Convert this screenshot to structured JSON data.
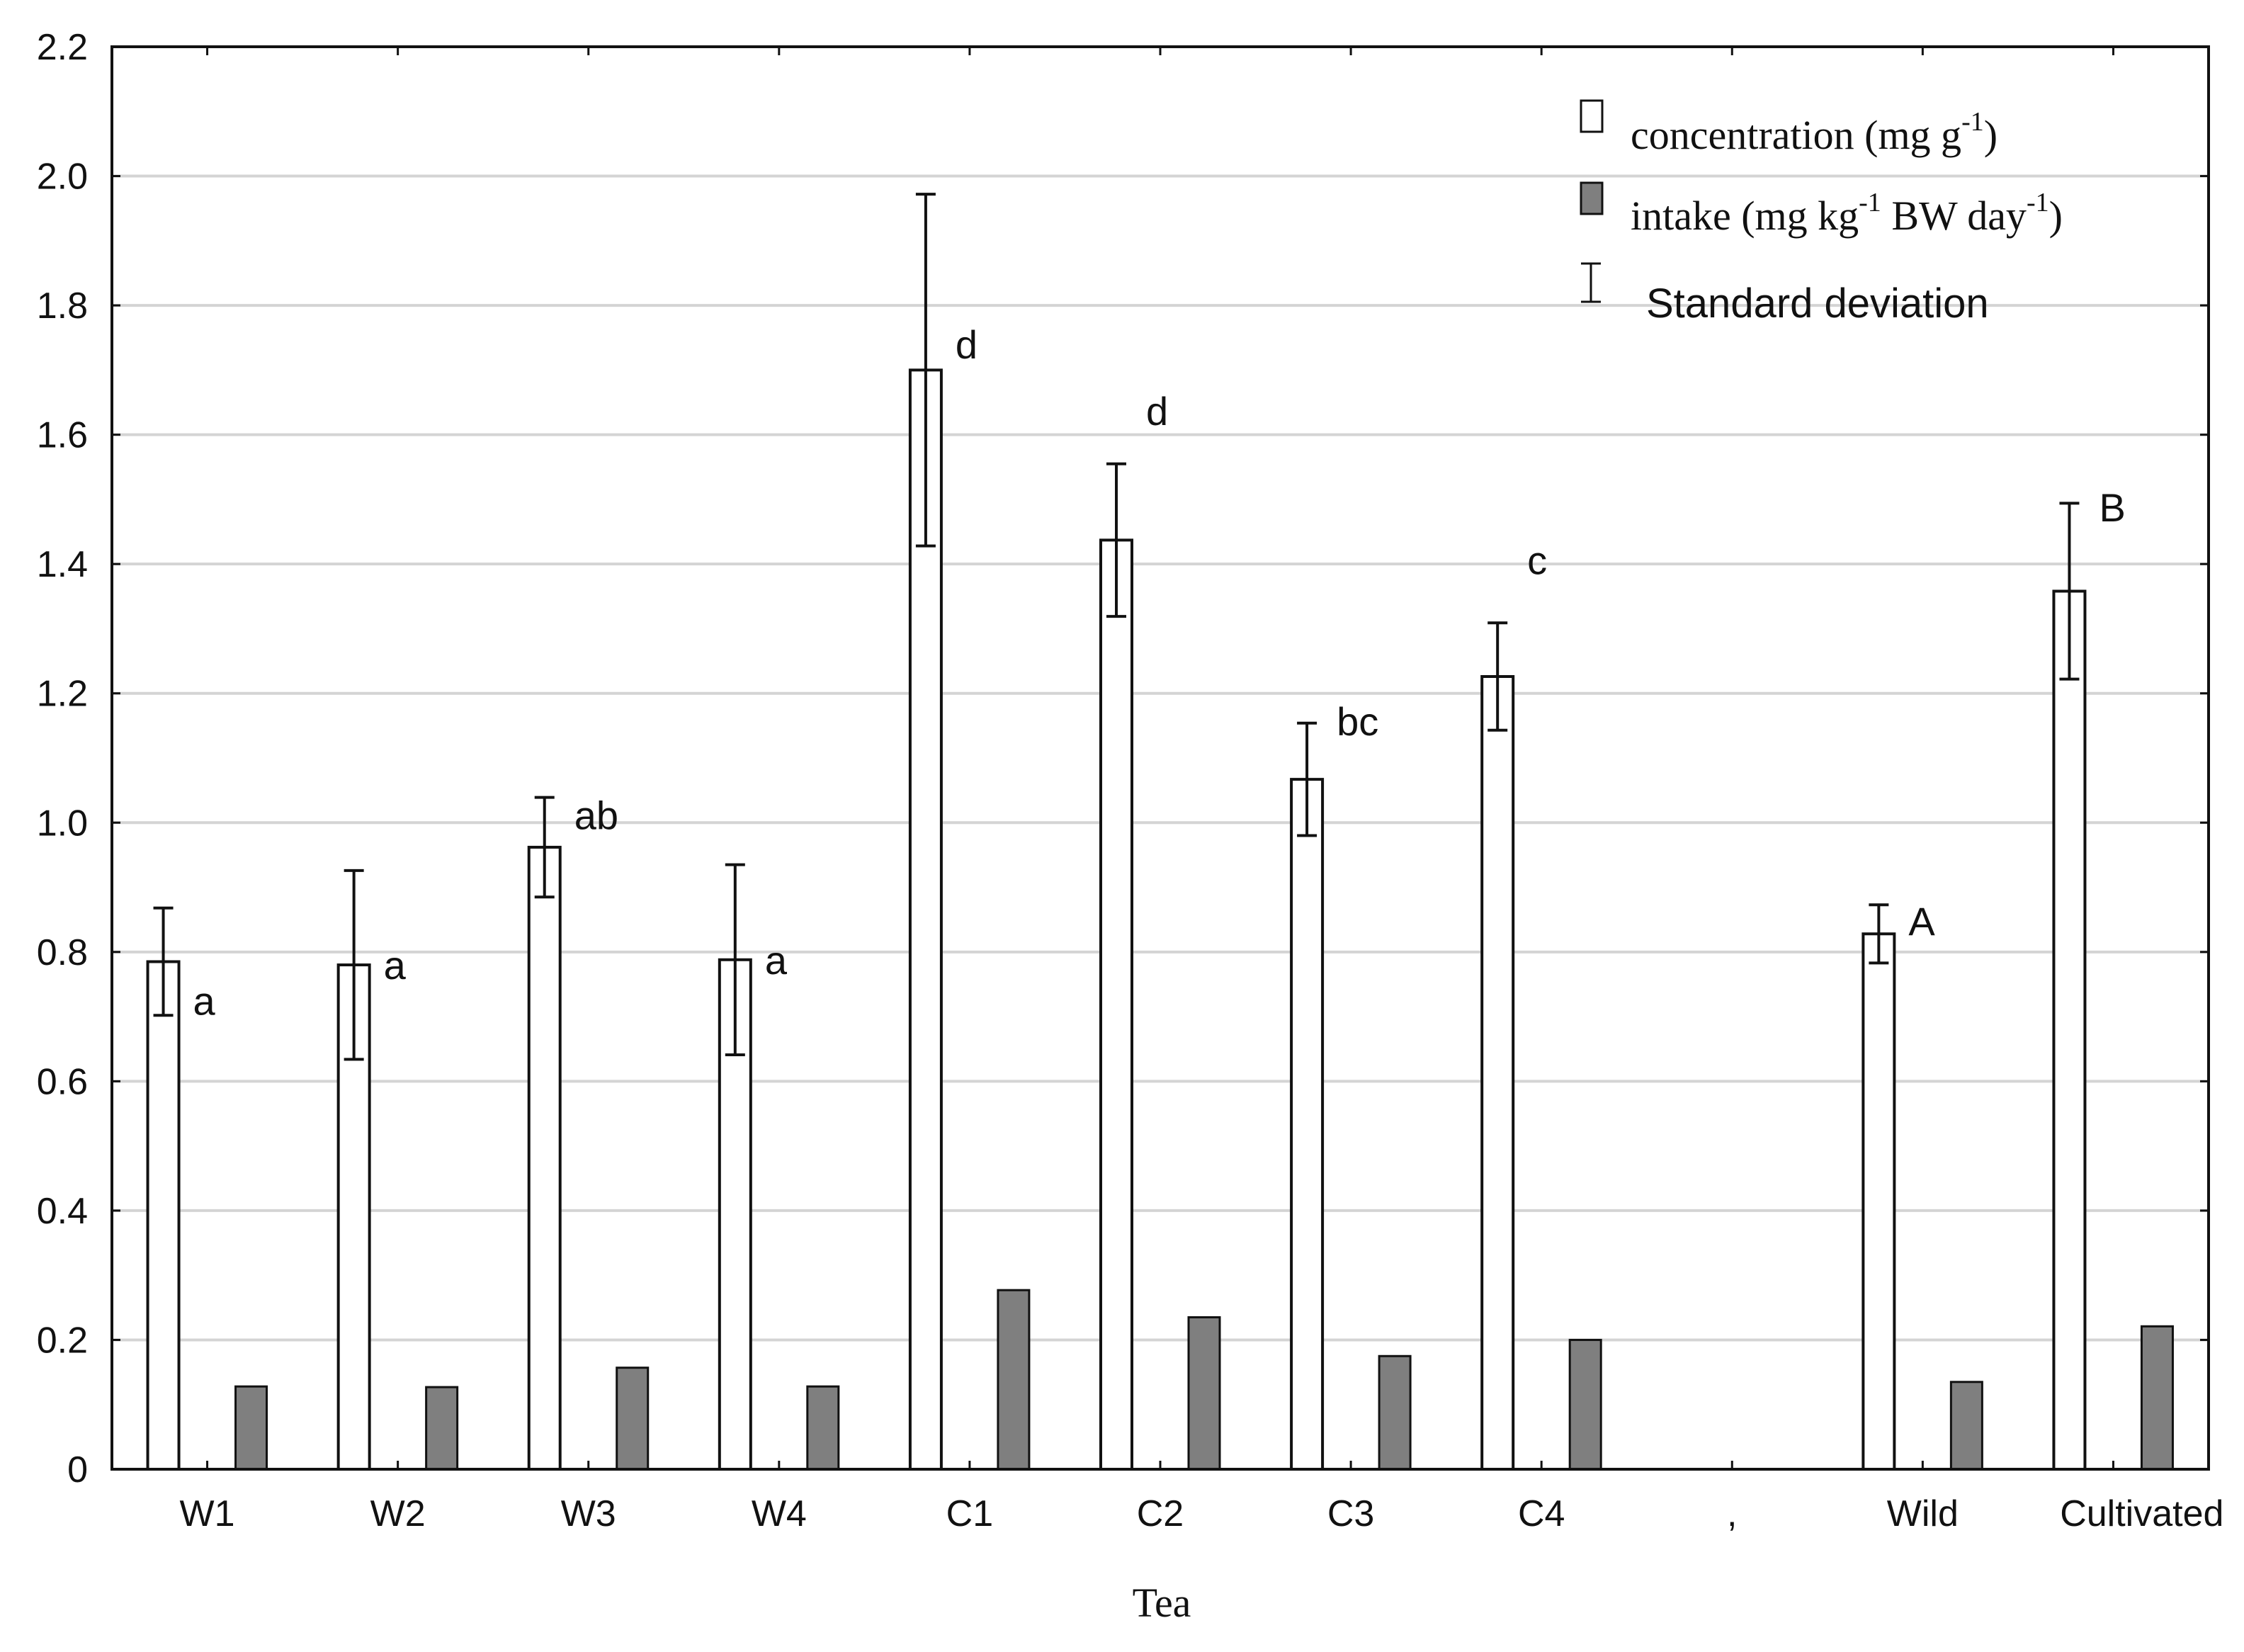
{
  "chart_data": {
    "type": "bar",
    "xlabel": "Tea",
    "ylabel": "",
    "ylim": [
      0,
      2.2
    ],
    "yticks": [
      "0",
      "0.2",
      "0.4",
      "0.6",
      "0.8",
      "1.0",
      "1.2",
      "1.4",
      "1.6",
      "1.8",
      "2.0",
      "2.2"
    ],
    "grid": true,
    "legend_position": "top-right",
    "categories": [
      "W1",
      "W2",
      "W3",
      "W4",
      "C1",
      "C2",
      "C3",
      "C4",
      ",",
      "Wild",
      "Cultivated"
    ],
    "series": [
      {
        "name": "concentration",
        "legend": {
          "text": "concentration (mg g",
          "sup": "-1",
          "tail": ")"
        },
        "color": "#ffffff",
        "values": [
          0.785,
          0.78,
          0.962,
          0.788,
          1.7,
          1.437,
          1.067,
          1.226,
          null,
          0.828,
          1.358
        ],
        "error": [
          0.083,
          0.146,
          0.077,
          0.147,
          0.272,
          0.118,
          0.087,
          0.083,
          null,
          0.045,
          0.136
        ]
      },
      {
        "name": "intake",
        "legend": {
          "text": "intake (mg kg",
          "sup": "-1",
          "mid": " BW day",
          "sup2": "-1",
          "tail": ")"
        },
        "color": "#7f7f7f",
        "values": [
          0.128,
          0.127,
          0.157,
          0.128,
          0.277,
          0.235,
          0.175,
          0.2,
          null,
          0.135,
          0.221
        ]
      }
    ],
    "error_legend": "Standard deviation",
    "significance_labels": [
      "a",
      "a",
      "ab",
      "a",
      "d",
      "d",
      "bc",
      "c",
      "",
      "A",
      "B"
    ],
    "significance_offsets": [
      [
        1,
        -0.06
      ],
      [
        1,
        0
      ],
      [
        1,
        0.05
      ],
      [
        1,
        0
      ],
      [
        1,
        0.04
      ],
      [
        1,
        0.2
      ],
      [
        1,
        0.09
      ],
      [
        1,
        0.18
      ],
      [
        0,
        0
      ],
      [
        1,
        0.02
      ],
      [
        1,
        0.13
      ]
    ],
    "category_offsets": [
      0,
      0,
      0,
      0,
      0,
      0,
      0,
      0,
      0,
      0,
      0.15
    ]
  }
}
